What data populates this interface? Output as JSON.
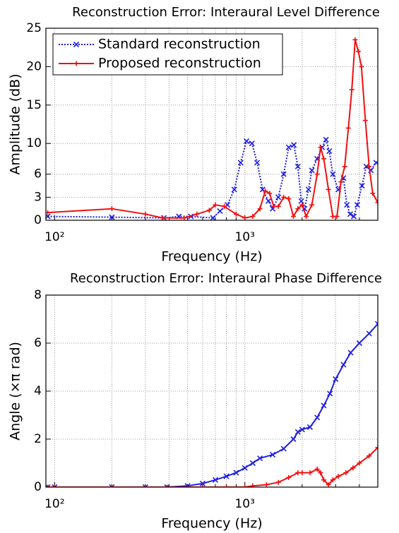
{
  "chart_data": [
    {
      "type": "line",
      "title": "Reconstruction Error: Interaural Level Difference",
      "xlabel": "Frequency (Hz)",
      "ylabel": "Amplitude (dB)",
      "xscale": "log",
      "xlim": [
        90,
        5000
      ],
      "ylim": [
        0,
        25
      ],
      "xticks": [
        {
          "value": 100,
          "label": "10²"
        },
        {
          "value": 1000,
          "label": "10³"
        }
      ],
      "xminorticks": [
        200,
        300,
        400,
        500,
        600,
        700,
        800,
        900,
        2000,
        3000,
        4000
      ],
      "yticks": [
        0,
        3,
        6,
        10,
        15,
        20,
        25
      ],
      "grid": true,
      "legend": "upper left",
      "series": [
        {
          "name": "Standard reconstruction",
          "color": "#1f1fe0",
          "marker": "x",
          "linestyle": "dotted",
          "x": [
            92,
            200,
            375,
            450,
            520,
            680,
            740,
            810,
            880,
            950,
            1020,
            1090,
            1160,
            1240,
            1330,
            1400,
            1500,
            1600,
            1700,
            1810,
            1900,
            1980,
            2060,
            2160,
            2250,
            2400,
            2550,
            2670,
            2780,
            2900,
            3100,
            3300,
            3440,
            3580,
            3740,
            3900,
            4130,
            4350,
            4600,
            4900
          ],
          "values": [
            0.5,
            0.4,
            0.3,
            0.5,
            0.5,
            0.3,
            1.2,
            2,
            4,
            7.5,
            10.3,
            10,
            7.5,
            4,
            2.5,
            1.5,
            3,
            6,
            9.5,
            9.8,
            7,
            2.5,
            1.5,
            4,
            6.5,
            8,
            9.5,
            10.5,
            9,
            6,
            4,
            5.5,
            2,
            0.8,
            0.5,
            2,
            4.5,
            7,
            6.5,
            7.5
          ]
        },
        {
          "name": "Proposed reconstruction",
          "color": "#f01010",
          "marker": "+",
          "linestyle": "solid",
          "x": [
            92,
            200,
            300,
            370,
            480,
            560,
            650,
            700,
            780,
            900,
            1000,
            1100,
            1200,
            1280,
            1350,
            1420,
            1500,
            1600,
            1700,
            1800,
            1900,
            2000,
            2100,
            2250,
            2400,
            2500,
            2600,
            2750,
            2900,
            3050,
            3200,
            3350,
            3500,
            3650,
            3800,
            3950,
            4100,
            4300,
            4500,
            4700,
            5000
          ],
          "values": [
            1.0,
            1.5,
            0.8,
            0.3,
            0.3,
            0.8,
            1.3,
            2.0,
            1.8,
            0.8,
            0.3,
            0.5,
            1.5,
            3.8,
            3.5,
            1.8,
            1.8,
            3,
            2.8,
            0.5,
            1.5,
            2,
            0.5,
            2,
            6,
            9.5,
            8,
            4,
            0.5,
            0.5,
            5,
            7,
            12,
            17,
            23.5,
            22,
            20,
            13,
            7,
            3.5,
            2.3
          ]
        }
      ]
    },
    {
      "type": "line",
      "title": "Reconstruction Error: Interaural Phase Difference",
      "xlabel": "Frequency (Hz)",
      "ylabel": "Angle (×π rad)",
      "xscale": "log",
      "xlim": [
        90,
        5000
      ],
      "ylim": [
        0,
        8
      ],
      "xticks": [
        {
          "value": 100,
          "label": "10²"
        },
        {
          "value": 1000,
          "label": "10³"
        }
      ],
      "xminorticks": [
        200,
        300,
        400,
        500,
        600,
        700,
        800,
        900,
        2000,
        3000,
        4000
      ],
      "yticks": [
        0,
        2,
        4,
        6,
        8
      ],
      "grid": true,
      "series": [
        {
          "color": "#1f1fe0",
          "marker": "x",
          "linestyle": "solid",
          "x": [
            92,
            100,
            200,
            300,
            390,
            500,
            600,
            700,
            800,
            900,
            1000,
            1100,
            1200,
            1400,
            1600,
            1800,
            1900,
            2000,
            2200,
            2400,
            2600,
            2800,
            3000,
            3300,
            3600,
            4000,
            4500,
            5000
          ],
          "values": [
            0,
            0,
            0,
            0,
            0,
            0.05,
            0.15,
            0.3,
            0.45,
            0.6,
            0.8,
            1.0,
            1.2,
            1.35,
            1.6,
            2.0,
            2.3,
            2.4,
            2.5,
            2.9,
            3.4,
            3.9,
            4.5,
            5.1,
            5.6,
            6.0,
            6.4,
            6.8
          ]
        },
        {
          "color": "#f01010",
          "marker": "+",
          "linestyle": "solid",
          "x": [
            92,
            100,
            200,
            300,
            390,
            600,
            800,
            1000,
            1100,
            1300,
            1500,
            1700,
            1900,
            2000,
            2200,
            2400,
            2500,
            2600,
            2750,
            2900,
            3100,
            3400,
            3700,
            4000,
            4500,
            5000
          ],
          "values": [
            0,
            0,
            0,
            0,
            0,
            0,
            0,
            0,
            0.05,
            0.1,
            0.2,
            0.4,
            0.6,
            0.6,
            0.6,
            0.75,
            0.6,
            0.3,
            0.1,
            0.3,
            0.45,
            0.6,
            0.8,
            1.0,
            1.3,
            1.65
          ]
        }
      ]
    }
  ]
}
